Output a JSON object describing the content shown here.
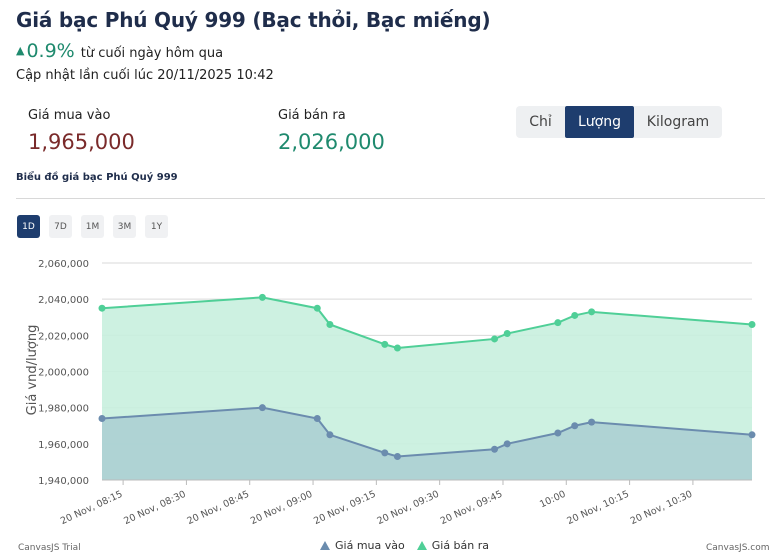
{
  "header": {
    "title": "Giá bạc Phú Quý 999 (Bạc thỏi, Bạc miếng)",
    "change_arrow": "▲",
    "change_pct": "0.9%",
    "change_note": "từ cuối ngày hôm qua",
    "updated": "Cập nhật lần cuối lúc 20/11/2025 10:42"
  },
  "prices": {
    "buy_label": "Giá mua vào",
    "buy_value": "1,965,000",
    "sell_label": "Giá bán ra",
    "sell_value": "2,026,000"
  },
  "unit_toggle": {
    "options": [
      "Chỉ",
      "Lượng",
      "Kilogram"
    ],
    "selected": "Lượng"
  },
  "chart_section": {
    "title": "Biểu đồ giá bạc Phú Quý 999",
    "ranges": [
      "1D",
      "7D",
      "1M",
      "3M",
      "1Y"
    ],
    "selected_range": "1D"
  },
  "footer": {
    "trial": "CanvasJS Trial",
    "credit": "CanvasJS.com"
  },
  "colors": {
    "buy_line": "#6b8cae",
    "buy_fill": "#a9ced1",
    "sell_line": "#4fcf97",
    "sell_fill": "#c8f0de",
    "accent": "#1e3d6e"
  },
  "chart_data": {
    "type": "area",
    "ylabel": "Giá vnd/lượng",
    "xlabel": "",
    "ylim": [
      1940000,
      2060000
    ],
    "yticks": [
      1940000,
      1960000,
      1980000,
      2000000,
      2020000,
      2040000,
      2060000
    ],
    "ytick_labels": [
      "1,940,000",
      "1,960,000",
      "1,980,000",
      "2,000,000",
      "2,020,000",
      "2,040,000",
      "2,060,000"
    ],
    "xlim": [
      "08:10",
      "10:44"
    ],
    "xticks": [
      "08:15",
      "08:30",
      "08:45",
      "09:00",
      "09:15",
      "09:30",
      "09:45",
      "10:00",
      "10:15",
      "10:30"
    ],
    "xtick_labels": [
      "20 Nov, 08:15",
      "20 Nov, 08:30",
      "20 Nov, 08:45",
      "20 Nov, 09:00",
      "20 Nov, 09:15",
      "20 Nov, 09:30",
      "20 Nov, 09:45",
      "10:00",
      "20 Nov, 10:15",
      "20 Nov, 10:30"
    ],
    "xtick_prefix": "20 Nov, ",
    "x": [
      "08:10",
      "08:48",
      "09:01",
      "09:04",
      "09:17",
      "09:20",
      "09:43",
      "09:46",
      "09:58",
      "10:02",
      "10:06",
      "10:44"
    ],
    "grid": true,
    "legend_position": "bottom",
    "series": [
      {
        "name": "Giá mua vào",
        "values": [
          1974000,
          1980000,
          1974000,
          1965000,
          1955000,
          1953000,
          1957000,
          1960000,
          1966000,
          1970000,
          1972000,
          1965000
        ]
      },
      {
        "name": "Giá bán ra",
        "values": [
          2035000,
          2041000,
          2035000,
          2026000,
          2015000,
          2013000,
          2018000,
          2021000,
          2027000,
          2031000,
          2033000,
          2026000
        ]
      }
    ]
  }
}
